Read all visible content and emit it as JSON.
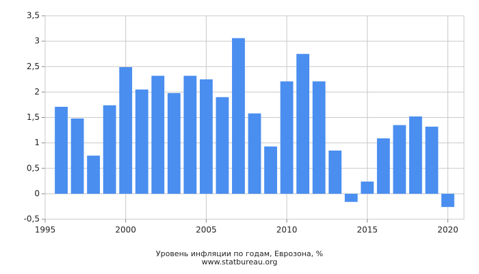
{
  "chart_data": {
    "type": "bar",
    "title": "Уровень инфляции по годам, Еврозона, %",
    "subtitle": "www.statbureau.org",
    "x": [
      1996,
      1997,
      1998,
      1999,
      2000,
      2001,
      2002,
      2003,
      2004,
      2005,
      2006,
      2007,
      2008,
      2009,
      2010,
      2011,
      2012,
      2013,
      2014,
      2015,
      2016,
      2017,
      2018,
      2019,
      2020
    ],
    "values": [
      1.71,
      1.48,
      0.75,
      1.74,
      2.49,
      2.05,
      2.32,
      1.98,
      2.32,
      2.25,
      1.9,
      3.06,
      1.58,
      0.93,
      2.21,
      2.75,
      2.21,
      0.85,
      -0.16,
      0.24,
      1.09,
      1.35,
      1.52,
      1.32,
      -0.26
    ],
    "color": "#4a8ef0",
    "xlim": [
      1995,
      2021
    ],
    "xticks": [
      1995,
      2000,
      2005,
      2010,
      2015,
      2020
    ],
    "ylim": [
      -0.5,
      3.5
    ],
    "yticks": [
      {
        "value": -0.5,
        "label": "-0,5"
      },
      0,
      {
        "value": 0.5,
        "label": "0,5"
      },
      1,
      {
        "value": 1.5,
        "label": "1,5"
      },
      2,
      {
        "value": 2.5,
        "label": "2,5"
      },
      3,
      {
        "value": 3.5,
        "label": "3,5"
      }
    ],
    "grid": true
  }
}
